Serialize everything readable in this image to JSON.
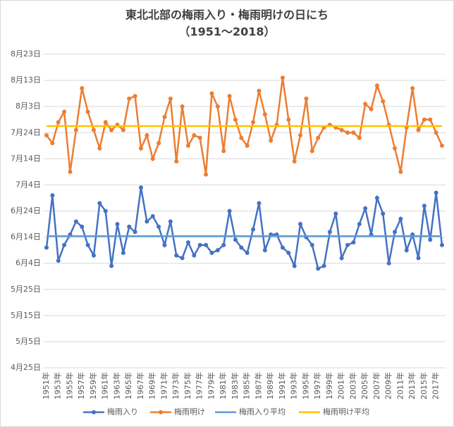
{
  "chart_data": {
    "type": "line",
    "title": "東北北部の梅雨入り・梅雨明けの日にち",
    "subtitle": "（1951～2018）",
    "categories": [
      "1951年",
      null,
      "1953年",
      null,
      "1955年",
      null,
      "1957年",
      null,
      "1959年",
      null,
      "1961年",
      null,
      "1963年",
      null,
      "1965年",
      null,
      "1967年",
      null,
      "1969年",
      null,
      "1971年",
      null,
      "1973年",
      null,
      "1975年",
      null,
      "1977年",
      null,
      "1979年",
      null,
      "1981年",
      null,
      "1983年",
      null,
      "1985年",
      null,
      "1987年",
      null,
      "1989年",
      null,
      "1991年",
      null,
      "1993年",
      null,
      "1995年",
      null,
      "1997年",
      null,
      "1999年",
      null,
      "2001年",
      null,
      "2003年",
      null,
      "2005年",
      null,
      "2007年",
      null,
      "2009年",
      null,
      "2011年",
      null,
      "2013年",
      null,
      "2015年",
      null,
      "2017年",
      null
    ],
    "series": [
      {
        "name": "梅雨入り",
        "color": "#4472c4",
        "values": [
          161,
          181,
          156,
          162,
          166,
          171,
          169,
          162,
          158,
          178,
          175,
          154,
          170,
          159,
          169,
          167,
          184,
          171,
          173,
          169,
          162,
          171,
          158,
          157,
          163,
          158,
          162,
          162,
          159,
          160,
          162,
          175,
          164,
          161,
          159,
          168,
          178,
          160,
          166,
          166,
          161,
          159,
          154,
          170,
          165,
          162,
          153,
          154,
          167,
          174,
          157,
          162,
          163,
          170,
          176,
          166,
          180,
          174,
          155,
          167,
          172,
          160,
          166,
          157,
          177,
          164,
          182,
          162
        ]
      },
      {
        "name": "梅雨明け",
        "color": "#ed7d31",
        "values": [
          204,
          201,
          209,
          213,
          190,
          206,
          222,
          213,
          206,
          199,
          209,
          206,
          208,
          206,
          218,
          219,
          199,
          204,
          195,
          201,
          211,
          218,
          194,
          215,
          200,
          204,
          203,
          189,
          220,
          215,
          198,
          219,
          210,
          203,
          200,
          209,
          221,
          212,
          202,
          208,
          226,
          210,
          194,
          204,
          218,
          198,
          203,
          207,
          208,
          207,
          206,
          205,
          205,
          203,
          216,
          214,
          223,
          217,
          208,
          199,
          190,
          207,
          222,
          206,
          210,
          210,
          205,
          200
        ]
      },
      {
        "name": "梅雨入り平均",
        "color": "#5b9bd5",
        "value": 165.4
      },
      {
        "name": "梅雨明け平均",
        "color": "#ffc000",
        "value": 207.5
      }
    ],
    "ylim": [
      115,
      235
    ],
    "yticks": [
      {
        "value": 115,
        "label": "4月25日"
      },
      {
        "value": 125,
        "label": "5月5日"
      },
      {
        "value": 135,
        "label": "5月15日"
      },
      {
        "value": 145,
        "label": "5月25日"
      },
      {
        "value": 155,
        "label": "6月4日"
      },
      {
        "value": 165,
        "label": "6月14日"
      },
      {
        "value": 175,
        "label": "6月24日"
      },
      {
        "value": 185,
        "label": "7月4日"
      },
      {
        "value": 195,
        "label": "7月14日"
      },
      {
        "value": 205,
        "label": "7月24日"
      },
      {
        "value": 215,
        "label": "8月3日"
      },
      {
        "value": 225,
        "label": "8月13日"
      },
      {
        "value": 235,
        "label": "8月23日"
      }
    ],
    "grid": true,
    "legend": "bottom"
  }
}
